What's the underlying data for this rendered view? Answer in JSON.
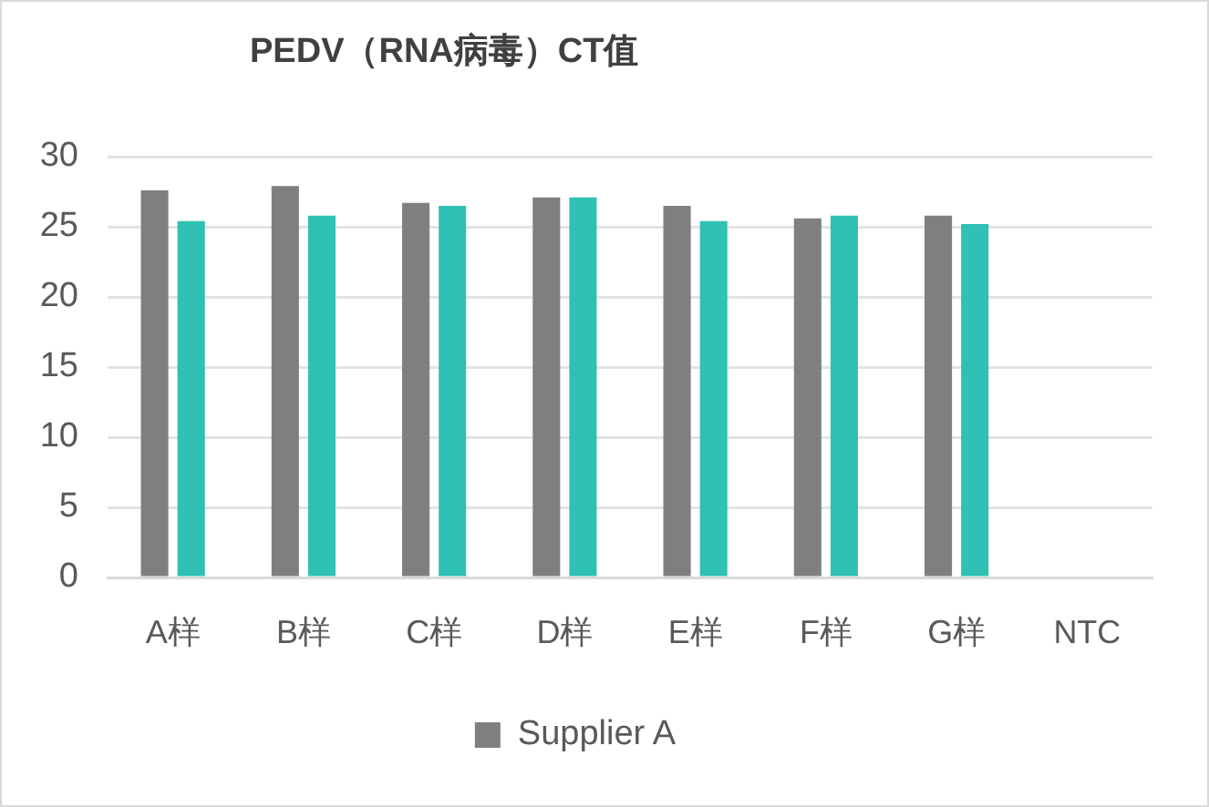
{
  "chart_data": {
    "type": "bar",
    "title": "PEDV（RNA病毒）CT值",
    "categories": [
      "A样",
      "B样",
      "C样",
      "D样",
      "E样",
      "F样",
      "G样",
      "NTC"
    ],
    "series": [
      {
        "name": "Supplier A",
        "color": "#7f7f7f",
        "values": [
          27.6,
          27.9,
          26.7,
          27.1,
          26.5,
          25.6,
          25.8,
          null
        ]
      },
      {
        "color": "#2fc1b3",
        "values": [
          25.4,
          25.8,
          26.5,
          27.1,
          25.4,
          25.8,
          25.2,
          null
        ]
      }
    ],
    "ylim": [
      0,
      30
    ],
    "yticks": [
      0,
      5,
      10,
      15,
      20,
      25,
      30
    ],
    "grid": "y",
    "legend": "bottom"
  }
}
